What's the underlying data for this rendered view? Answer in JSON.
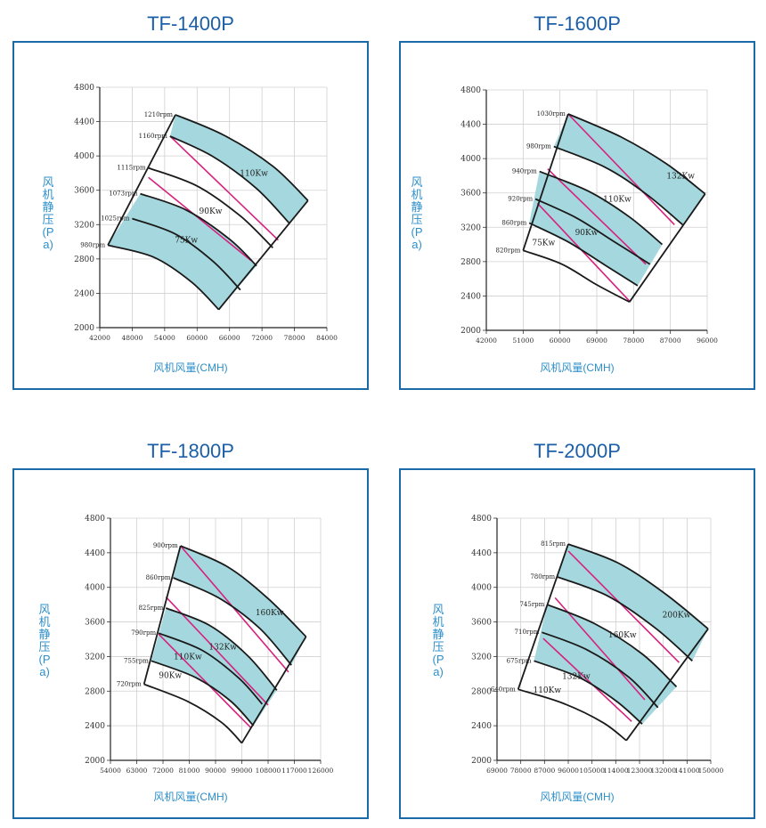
{
  "chart_data": [
    {
      "type": "line",
      "title": "TF-1400P",
      "xlabel": "风机风量(CMH)",
      "ylabel": "风机静压(Pa)",
      "x_ticks": [
        "42000",
        "48000",
        "54000",
        "60000",
        "66000",
        "72000",
        "78000",
        "84000"
      ],
      "y_ticks": [
        "2000",
        "2400",
        "2800",
        "3200",
        "3600",
        "4000",
        "4400",
        "4800"
      ],
      "xlim": [
        42000,
        84000
      ],
      "ylim": [
        2000,
        4800
      ],
      "grid": true,
      "shaded_color": "#a5d8de",
      "power_line_color": "#d6217e",
      "rpm_curves": [
        {
          "rpm": "1210rpm",
          "points": [
            [
              56000,
              4480
            ],
            [
              65000,
              4240
            ],
            [
              74000,
              3880
            ],
            [
              80500,
              3480
            ]
          ]
        },
        {
          "rpm": "1160rpm",
          "points": [
            [
              55000,
              4230
            ],
            [
              63000,
              3990
            ],
            [
              71000,
              3620
            ],
            [
              77000,
              3220
            ]
          ]
        },
        {
          "rpm": "1115rpm",
          "points": [
            [
              51000,
              3860
            ],
            [
              60000,
              3650
            ],
            [
              68000,
              3300
            ],
            [
              74000,
              2930
            ]
          ]
        },
        {
          "rpm": "1073rpm",
          "points": [
            [
              49500,
              3560
            ],
            [
              58000,
              3370
            ],
            [
              66000,
              3030
            ],
            [
              71000,
              2720
            ]
          ]
        },
        {
          "rpm": "1025rpm",
          "points": [
            [
              48000,
              3270
            ],
            [
              56000,
              3090
            ],
            [
              63000,
              2770
            ],
            [
              68000,
              2440
            ]
          ]
        },
        {
          "rpm": "980rpm",
          "points": [
            [
              43500,
              2960
            ],
            [
              52000,
              2820
            ],
            [
              59000,
              2530
            ],
            [
              64000,
              2210
            ]
          ]
        }
      ],
      "shaded_bands": [
        [
          0,
          1
        ],
        [
          3,
          5
        ]
      ],
      "boundary_left": [
        [
          43500,
          2960
        ],
        [
          56000,
          4480
        ]
      ],
      "boundary_right": [
        [
          64000,
          2210
        ],
        [
          80500,
          3480
        ]
      ],
      "power_lines": [
        {
          "label": "110Kw",
          "from": [
            55000,
            4230
          ],
          "to": [
            75000,
            3020
          ],
          "label_at": [
            70500,
            3770
          ]
        },
        {
          "label": "90Kw",
          "from": [
            51000,
            3750
          ],
          "to": [
            70000,
            2780
          ],
          "label_at": [
            62500,
            3330
          ]
        },
        {
          "label": "75Kw",
          "label_at": [
            58000,
            2990
          ]
        }
      ]
    },
    {
      "type": "line",
      "title": "TF-1600P",
      "xlabel": "风机风量(CMH)",
      "ylabel": "风机静压(Pa)",
      "x_ticks": [
        "42000",
        "51000",
        "60000",
        "69000",
        "78000",
        "87000",
        "96000"
      ],
      "y_ticks": [
        "2000",
        "2400",
        "2800",
        "3200",
        "3600",
        "4000",
        "4400",
        "4800"
      ],
      "xlim": [
        42000,
        96000
      ],
      "ylim": [
        2000,
        4800
      ],
      "grid": true,
      "shaded_color": "#a5d8de",
      "power_line_color": "#d6217e",
      "rpm_curves": [
        {
          "rpm": "1030rpm",
          "points": [
            [
              62000,
              4520
            ],
            [
              75000,
              4250
            ],
            [
              86000,
              3940
            ],
            [
              95500,
              3590
            ]
          ]
        },
        {
          "rpm": "980rpm",
          "points": [
            [
              58500,
              4140
            ],
            [
              71000,
              3900
            ],
            [
              81000,
              3590
            ],
            [
              90000,
              3230
            ]
          ]
        },
        {
          "rpm": "940rpm",
          "points": [
            [
              55000,
              3850
            ],
            [
              67000,
              3620
            ],
            [
              77000,
              3320
            ],
            [
              85000,
              3000
            ]
          ]
        },
        {
          "rpm": "920rpm",
          "points": [
            [
              54000,
              3530
            ],
            [
              64000,
              3310
            ],
            [
              73000,
              3040
            ],
            [
              82000,
              2770
            ]
          ]
        },
        {
          "rpm": "860rpm",
          "points": [
            [
              52500,
              3250
            ],
            [
              62000,
              3030
            ],
            [
              71000,
              2760
            ],
            [
              79000,
              2520
            ]
          ]
        },
        {
          "rpm": "820rpm",
          "points": [
            [
              51000,
              2930
            ],
            [
              60500,
              2770
            ],
            [
              69000,
              2530
            ],
            [
              77000,
              2330
            ]
          ]
        }
      ],
      "shaded_bands": [
        [
          0,
          1
        ],
        [
          2,
          4
        ]
      ],
      "boundary_left": [
        [
          51000,
          2930
        ],
        [
          62000,
          4520
        ]
      ],
      "boundary_right": [
        [
          77000,
          2330
        ],
        [
          95500,
          3590
        ]
      ],
      "power_lines": [
        {
          "label": "132Kw",
          "from": [
            62000,
            4520
          ],
          "to": [
            88000,
            3230
          ],
          "label_at": [
            89500,
            3770
          ]
        },
        {
          "label": "110Kw",
          "from": [
            57000,
            3880
          ],
          "to": [
            81000,
            2770
          ],
          "label_at": [
            74000,
            3500
          ]
        },
        {
          "label": "90Kw",
          "from": [
            54500,
            3480
          ],
          "to": [
            77000,
            2340
          ],
          "label_at": [
            66500,
            3110
          ]
        },
        {
          "label": "75Kw",
          "label_at": [
            56000,
            2990
          ]
        }
      ]
    },
    {
      "type": "line",
      "title": "TF-1800P",
      "xlabel": "风机风量(CMH)",
      "ylabel": "风机静压(Pa)",
      "x_ticks": [
        "54000",
        "63000",
        "72000",
        "81000",
        "90000",
        "99000",
        "108000",
        "117000",
        "126000"
      ],
      "y_ticks": [
        "2000",
        "2400",
        "2800",
        "3200",
        "3600",
        "4000",
        "4400",
        "4800"
      ],
      "xlim": [
        54000,
        126000
      ],
      "ylim": [
        2000,
        4800
      ],
      "grid": true,
      "shaded_color": "#a5d8de",
      "power_line_color": "#d6217e",
      "rpm_curves": [
        {
          "rpm": "900rpm",
          "points": [
            [
              78000,
              4480
            ],
            [
              94000,
              4240
            ],
            [
              108000,
              3870
            ],
            [
              121000,
              3430
            ]
          ]
        },
        {
          "rpm": "860rpm",
          "points": [
            [
              75500,
              4110
            ],
            [
              91000,
              3880
            ],
            [
              105000,
              3530
            ],
            [
              116000,
              3100
            ]
          ]
        },
        {
          "rpm": "825rpm",
          "points": [
            [
              73000,
              3760
            ],
            [
              88000,
              3560
            ],
            [
              101000,
              3210
            ],
            [
              111000,
              2810
            ]
          ]
        },
        {
          "rpm": "790rpm",
          "points": [
            [
              70500,
              3470
            ],
            [
              85500,
              3270
            ],
            [
              98000,
              2950
            ],
            [
              106000,
              2650
            ]
          ]
        },
        {
          "rpm": "755rpm",
          "points": [
            [
              68000,
              3150
            ],
            [
              83000,
              2960
            ],
            [
              95000,
              2690
            ],
            [
              103000,
              2400
            ]
          ]
        },
        {
          "rpm": "720rpm",
          "points": [
            [
              65500,
              2880
            ],
            [
              80500,
              2680
            ],
            [
              92000,
              2440
            ],
            [
              99000,
              2200
            ]
          ]
        }
      ],
      "shaded_bands": [
        [
          0,
          1
        ],
        [
          2,
          4
        ]
      ],
      "boundary_left": [
        [
          65500,
          2880
        ],
        [
          78000,
          4480
        ]
      ],
      "boundary_right": [
        [
          99000,
          2200
        ],
        [
          121000,
          3430
        ]
      ],
      "power_lines": [
        {
          "label": "160Kw",
          "from": [
            78000,
            4480
          ],
          "to": [
            115000,
            3020
          ],
          "label_at": [
            108500,
            3680
          ]
        },
        {
          "label": "132Kw",
          "from": [
            73000,
            3890
          ],
          "to": [
            108000,
            2640
          ],
          "label_at": [
            92500,
            3280
          ]
        },
        {
          "label": "110Kw",
          "from": [
            70500,
            3460
          ],
          "to": [
            102000,
            2380
          ],
          "label_at": [
            80500,
            3170
          ]
        },
        {
          "label": "90Kw",
          "label_at": [
            74500,
            2950
          ]
        }
      ]
    },
    {
      "type": "line",
      "title": "TF-2000P",
      "xlabel": "风机风量(CMH)",
      "ylabel": "风机静压(Pa)",
      "x_ticks": [
        "69000",
        "78000",
        "87000",
        "96000",
        "105000",
        "114000",
        "123000",
        "132000",
        "141000",
        "150000"
      ],
      "y_ticks": [
        "2000",
        "2400",
        "2800",
        "3200",
        "3600",
        "4000",
        "4400",
        "4800"
      ],
      "xlim": [
        69000,
        150000
      ],
      "ylim": [
        2000,
        4800
      ],
      "grid": true,
      "shaded_color": "#a5d8de",
      "power_line_color": "#d6217e",
      "rpm_curves": [
        {
          "rpm": "815rpm",
          "points": [
            [
              96000,
              4500
            ],
            [
              115000,
              4280
            ],
            [
              133000,
              3920
            ],
            [
              149000,
              3520
            ]
          ]
        },
        {
          "rpm": "780rpm",
          "points": [
            [
              92000,
              4120
            ],
            [
              111000,
              3900
            ],
            [
              129000,
              3530
            ],
            [
              143000,
              3150
            ]
          ]
        },
        {
          "rpm": "745rpm",
          "points": [
            [
              88000,
              3800
            ],
            [
              106000,
              3580
            ],
            [
              124000,
              3230
            ],
            [
              137000,
              2850
            ]
          ]
        },
        {
          "rpm": "710rpm",
          "points": [
            [
              86000,
              3480
            ],
            [
              103000,
              3280
            ],
            [
              119000,
              2960
            ],
            [
              130000,
              2610
            ]
          ]
        },
        {
          "rpm": "675rpm",
          "points": [
            [
              83000,
              3150
            ],
            [
              100000,
              2960
            ],
            [
              114000,
              2690
            ],
            [
              124000,
              2420
            ]
          ]
        },
        {
          "rpm": "640rpm",
          "points": [
            [
              77000,
              2820
            ],
            [
              94000,
              2660
            ],
            [
              109000,
              2440
            ],
            [
              118000,
              2230
            ]
          ]
        }
      ],
      "shaded_bands": [
        [
          0,
          1
        ],
        [
          2,
          4
        ]
      ],
      "boundary_left": [
        [
          77000,
          2820
        ],
        [
          96000,
          4500
        ]
      ],
      "boundary_right": [
        [
          118000,
          2230
        ],
        [
          149000,
          3520
        ]
      ],
      "power_lines": [
        {
          "label": "200Kw",
          "from": [
            96000,
            4420
          ],
          "to": [
            138000,
            3130
          ],
          "label_at": [
            137000,
            3650
          ]
        },
        {
          "label": "160Kw",
          "from": [
            91000,
            3880
          ],
          "to": [
            125000,
            2700
          ],
          "label_at": [
            116500,
            3420
          ]
        },
        {
          "label": "132Kw",
          "from": [
            86500,
            3410
          ],
          "to": [
            120000,
            2450
          ],
          "label_at": [
            99000,
            2940
          ]
        },
        {
          "label": "110Kw",
          "label_at": [
            88000,
            2780
          ]
        }
      ]
    }
  ]
}
